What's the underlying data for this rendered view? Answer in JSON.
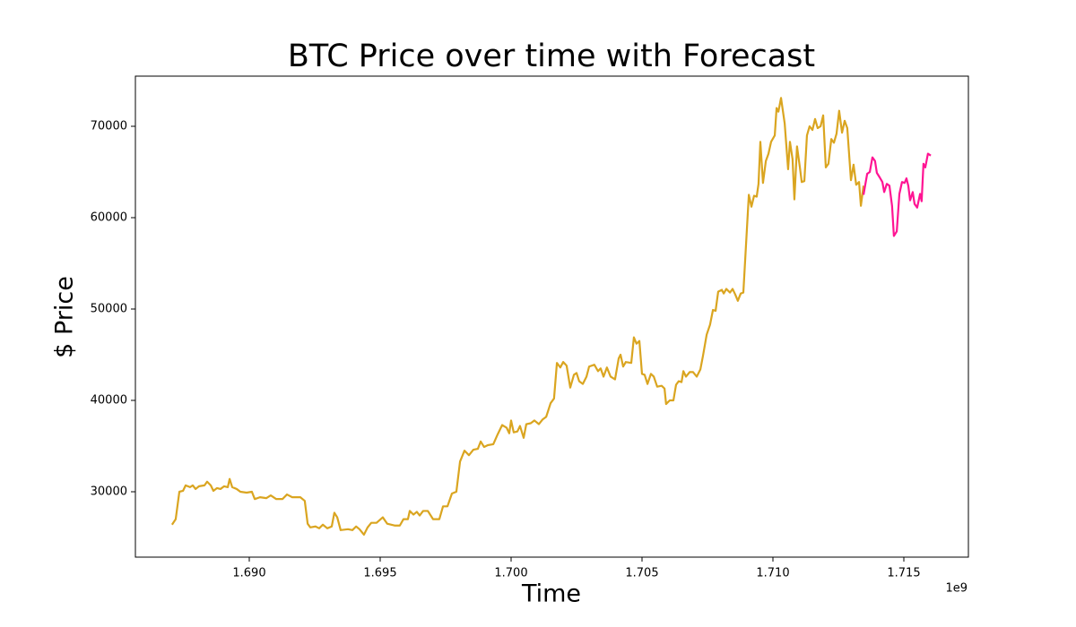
{
  "chart_data": {
    "type": "line",
    "title": "BTC Price over time with Forecast",
    "xlabel": "Time",
    "ylabel": "$ Price",
    "x_offset_label": "1e9",
    "xlim": [
      1.685651,
      1.717466
    ],
    "ylim": [
      22843,
      75490
    ],
    "xticks": [
      {
        "value": 1.69,
        "label": "1.690"
      },
      {
        "value": 1.695,
        "label": "1.695"
      },
      {
        "value": 1.7,
        "label": "1.700"
      },
      {
        "value": 1.705,
        "label": "1.705"
      },
      {
        "value": 1.71,
        "label": "1.710"
      },
      {
        "value": 1.715,
        "label": "1.715"
      }
    ],
    "yticks": [
      30000,
      40000,
      50000,
      60000,
      70000
    ],
    "grid": false,
    "series": [
      {
        "color": "#daa520",
        "x": [
          1.68705,
          1.68719,
          1.68733,
          1.68747,
          1.68757,
          1.68774,
          1.68784,
          1.68795,
          1.68808,
          1.68829,
          1.68839,
          1.68853,
          1.68863,
          1.68877,
          1.6889,
          1.68904,
          1.68918,
          1.68925,
          1.68935,
          1.68952,
          1.68966,
          1.6899,
          1.6901,
          1.69021,
          1.69041,
          1.69065,
          1.69082,
          1.69103,
          1.69127,
          1.69144,
          1.69164,
          1.69195,
          1.69212,
          1.69223,
          1.69233,
          1.69253,
          1.69267,
          1.69281,
          1.69298,
          1.69315,
          1.69325,
          1.69336,
          1.69349,
          1.69377,
          1.69394,
          1.69408,
          1.69421,
          1.69438,
          1.69452,
          1.69466,
          1.69486,
          1.6951,
          1.69527,
          1.69541,
          1.69555,
          1.69575,
          1.69589,
          1.69606,
          1.69613,
          1.69627,
          1.6964,
          1.69651,
          1.69664,
          1.69682,
          1.69702,
          1.69726,
          1.6974,
          1.69757,
          1.69774,
          1.69791,
          1.69805,
          1.69822,
          1.69839,
          1.69856,
          1.69873,
          1.69884,
          1.69897,
          1.69911,
          1.69932,
          1.69949,
          1.69966,
          1.69983,
          1.69993,
          1.7,
          1.7001,
          1.70024,
          1.70034,
          1.70048,
          1.70058,
          1.70075,
          1.70089,
          1.70106,
          1.7012,
          1.70134,
          1.70151,
          1.70164,
          1.70175,
          1.70188,
          1.70199,
          1.70212,
          1.70226,
          1.7024,
          1.7025,
          1.7026,
          1.70274,
          1.70288,
          1.70298,
          1.70318,
          1.70332,
          1.70342,
          1.70353,
          1.70366,
          1.7038,
          1.70397,
          1.70411,
          1.70418,
          1.70428,
          1.70438,
          1.70459,
          1.70469,
          1.70479,
          1.7049,
          1.705,
          1.7051,
          1.70521,
          1.70534,
          1.70545,
          1.70558,
          1.70575,
          1.70586,
          1.70592,
          1.70606,
          1.7062,
          1.7063,
          1.7064,
          1.70651,
          1.70658,
          1.70668,
          1.70682,
          1.70695,
          1.70709,
          1.70723,
          1.70733,
          1.70747,
          1.7076,
          1.70771,
          1.70781,
          1.70791,
          1.70805,
          1.70812,
          1.70822,
          1.70836,
          1.70846,
          1.70856,
          1.70866,
          1.70877,
          1.70887,
          1.70897,
          1.70908,
          1.70918,
          1.70928,
          1.70938,
          1.70945,
          1.70952,
          1.70962,
          1.70973,
          1.70983,
          1.70993,
          1.71007,
          1.71014,
          1.71021,
          1.71031,
          1.71045,
          1.71058,
          1.71065,
          1.71075,
          1.71082,
          1.71092,
          1.71103,
          1.7111,
          1.7112,
          1.7113,
          1.7114,
          1.71151,
          1.71161,
          1.71171,
          1.71182,
          1.71192,
          1.71202,
          1.71212,
          1.71223,
          1.71233,
          1.71243,
          1.71253,
          1.71264,
          1.71274,
          1.71284,
          1.71298,
          1.71308,
          1.71318,
          1.71329,
          1.71336,
          1.71346
        ],
        "values": [
          26400,
          27000,
          30000,
          30100,
          30700,
          30500,
          30700,
          30300,
          30600,
          30700,
          31100,
          30700,
          30100,
          30400,
          30300,
          30600,
          30500,
          31400,
          30500,
          30300,
          30000,
          29900,
          30000,
          29200,
          29400,
          29300,
          29600,
          29200,
          29200,
          29700,
          29400,
          29400,
          29000,
          26500,
          26100,
          26200,
          26000,
          26400,
          26000,
          26200,
          27700,
          27200,
          25800,
          25900,
          25800,
          26200,
          25900,
          25300,
          26100,
          26600,
          26600,
          27200,
          26500,
          26400,
          26300,
          26300,
          27000,
          27000,
          27900,
          27500,
          27800,
          27400,
          27900,
          27900,
          27000,
          27000,
          28400,
          28400,
          29800,
          30000,
          33300,
          34500,
          34000,
          34600,
          34700,
          35500,
          34900,
          35100,
          35200,
          36300,
          37300,
          37000,
          36400,
          37800,
          36500,
          36600,
          37200,
          35900,
          37400,
          37500,
          37800,
          37400,
          37900,
          38200,
          39700,
          40200,
          44100,
          43600,
          44200,
          43800,
          41400,
          42800,
          43000,
          42100,
          41800,
          42600,
          43700,
          43900,
          43200,
          43500,
          42600,
          43600,
          42600,
          42300,
          44600,
          45000,
          43700,
          44200,
          44100,
          46900,
          46200,
          46500,
          42900,
          42800,
          41800,
          42900,
          42600,
          41500,
          41600,
          41300,
          39600,
          40000,
          40000,
          41700,
          42100,
          42000,
          43200,
          42600,
          43100,
          43100,
          42600,
          43400,
          44900,
          47200,
          48300,
          49900,
          49800,
          51900,
          52100,
          51700,
          52200,
          51800,
          52200,
          51600,
          50900,
          51700,
          51800,
          56900,
          62500,
          61200,
          62400,
          62300,
          63700,
          68300,
          63800,
          66200,
          67000,
          68300,
          69000,
          72000,
          71600,
          73100,
          70300,
          65300,
          68300,
          66400,
          62000,
          67800,
          65500,
          63900,
          64000,
          69000,
          70000,
          69600,
          70800,
          69800,
          70000,
          71200,
          65500,
          65900,
          68600,
          68200,
          69200,
          71700,
          69300,
          70600,
          69800,
          64100,
          65800,
          63600,
          63900,
          61300,
          63500
        ]
      },
      {
        "color": "#ff1493",
        "x": [
          1.71346,
          1.7136,
          1.7137,
          1.7138,
          1.7139,
          1.71397,
          1.71408,
          1.71418,
          1.71425,
          1.71435,
          1.71445,
          1.71455,
          1.71462,
          1.71473,
          1.71483,
          1.71493,
          1.71503,
          1.7151,
          1.71517,
          1.71524,
          1.71534,
          1.71541,
          1.71551,
          1.71562,
          1.71568,
          1.71575,
          1.71582,
          1.71592,
          1.71603
        ],
        "values": [
          62500,
          64800,
          65000,
          66600,
          66200,
          64900,
          64400,
          63900,
          62800,
          63700,
          63500,
          61300,
          58000,
          58500,
          62600,
          63900,
          63800,
          64300,
          63500,
          61900,
          62800,
          61500,
          61100,
          62600,
          61800,
          65900,
          65500,
          67000,
          66800
        ]
      }
    ]
  }
}
